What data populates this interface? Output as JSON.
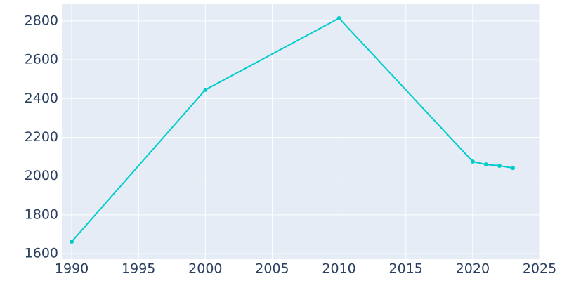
{
  "chart_data": {
    "type": "line",
    "x": [
      1990,
      2000,
      2010,
      2020,
      2021,
      2022,
      2023
    ],
    "series": [
      {
        "color": "#00cccc",
        "values": [
          1662,
          2445,
          2814,
          2075,
          2060,
          2053,
          2042
        ]
      }
    ],
    "xlim": [
      1989.26,
      2025
    ],
    "xticks": [
      1990,
      1995,
      2000,
      2005,
      2010,
      2015,
      2020,
      2025
    ],
    "ylim": [
      1575,
      2890
    ],
    "yticks": [
      1600,
      1800,
      2000,
      2200,
      2400,
      2600,
      2800
    ],
    "grid": true
  }
}
